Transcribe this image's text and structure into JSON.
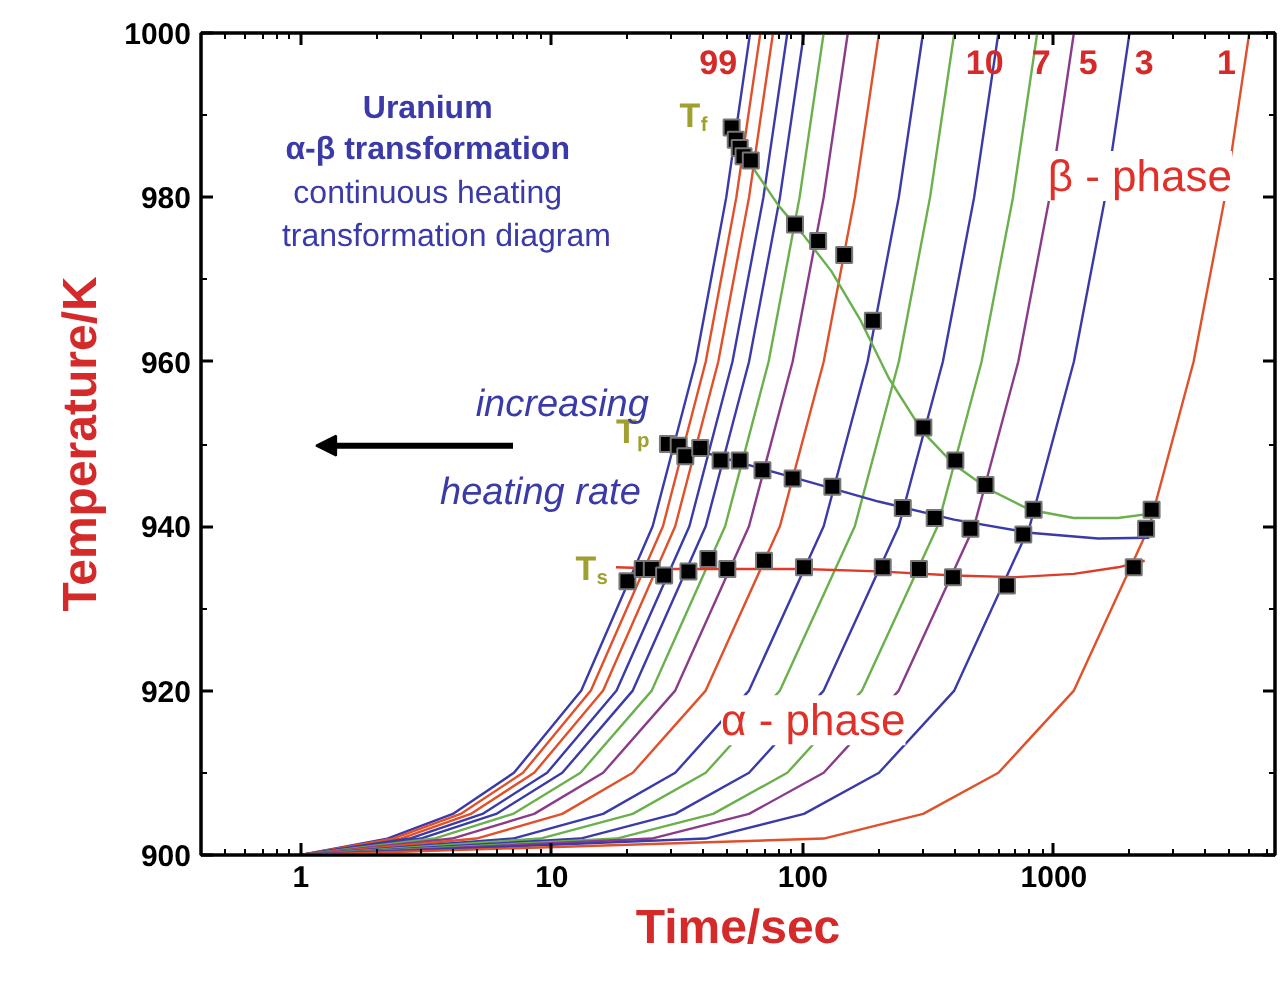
{
  "chart_data": {
    "type": "line",
    "xlabel": "Time/sec",
    "ylabel": "Temperature/K",
    "log": "x",
    "grid": false,
    "xlim": [
      0.4,
      7600
    ],
    "ylim": [
      900,
      1000
    ],
    "xticks": [
      {
        "value": 0.5,
        "label": null
      },
      {
        "value": 0.6,
        "label": null
      },
      {
        "value": 0.7,
        "label": null
      },
      {
        "value": 0.8,
        "label": null
      },
      {
        "value": 0.9,
        "label": null
      },
      1,
      {
        "value": 2,
        "label": null
      },
      {
        "value": 3,
        "label": null
      },
      {
        "value": 4,
        "label": null
      },
      {
        "value": 5,
        "label": null
      },
      {
        "value": 6,
        "label": null
      },
      {
        "value": 7,
        "label": null
      },
      {
        "value": 8,
        "label": null
      },
      {
        "value": 9,
        "label": null
      },
      10,
      {
        "value": 20,
        "label": null
      },
      {
        "value": 30,
        "label": null
      },
      {
        "value": 40,
        "label": null
      },
      {
        "value": 50,
        "label": null
      },
      {
        "value": 60,
        "label": null
      },
      {
        "value": 70,
        "label": null
      },
      {
        "value": 80,
        "label": null
      },
      {
        "value": 90,
        "label": null
      },
      100,
      {
        "value": 200,
        "label": null
      },
      {
        "value": 300,
        "label": null
      },
      {
        "value": 400,
        "label": null
      },
      {
        "value": 500,
        "label": null
      },
      {
        "value": 600,
        "label": null
      },
      {
        "value": 700,
        "label": null
      },
      {
        "value": 800,
        "label": null
      },
      {
        "value": 900,
        "label": null
      },
      1000,
      {
        "value": 2000,
        "label": null
      },
      {
        "value": 3000,
        "label": null
      },
      {
        "value": 4000,
        "label": null
      },
      {
        "value": 5000,
        "label": null
      },
      {
        "value": 6000,
        "label": null
      },
      {
        "value": 7000,
        "label": null
      }
    ],
    "yticks": [
      900,
      {
        "value": 910,
        "label": null
      },
      920,
      {
        "value": 930,
        "label": null
      },
      940,
      {
        "value": 950,
        "label": null
      },
      960,
      {
        "value": 970,
        "label": null
      },
      980,
      {
        "value": 990,
        "label": null
      },
      1000
    ],
    "annotations": [
      "Uranium",
      "α-β transformation",
      "continuous heating",
      "transformation diagram",
      "increasing",
      "heating rate",
      "β - phase",
      "α - phase",
      "99",
      "10",
      "7",
      "5",
      "3",
      "1"
    ],
    "series": [
      {
        "color": "#3a3aa8",
        "x": [
          1,
          2.21,
          4.03,
          7.06,
          13.1,
          25.2,
          37.4,
          49.5,
          61.6
        ],
        "values": [
          900,
          902,
          905,
          910,
          920,
          940,
          960,
          980,
          1000
        ]
      },
      {
        "type": "line",
        "color": "#e0502a",
        "x": [
          1,
          2.33,
          4.33,
          7.67,
          14.3,
          27.7,
          41,
          54.3,
          67.7
        ],
        "values": [
          900,
          902,
          905,
          910,
          920,
          940,
          960,
          980,
          1000
        ]
      },
      {
        "type": "line",
        "color": "#e0502a",
        "x": [
          1,
          2.5,
          4.75,
          8.5,
          16,
          31,
          46,
          61,
          76
        ],
        "values": [
          900,
          902,
          905,
          910,
          920,
          940,
          960,
          980,
          1000
        ]
      },
      {
        "type": "line",
        "color": "#3a3aa8",
        "x": [
          1,
          2.71,
          5.29,
          9.57,
          18.1,
          35.3,
          52.4,
          69.6,
          86.7
        ],
        "values": [
          900,
          902,
          905,
          910,
          920,
          940,
          960,
          980,
          1000
        ]
      },
      {
        "type": "line",
        "color": "#3a3aa8",
        "x": [
          1,
          3,
          6,
          11,
          21,
          41,
          61,
          81,
          101
        ],
        "values": [
          900,
          902,
          905,
          910,
          920,
          940,
          960,
          980,
          1000
        ]
      },
      {
        "type": "line",
        "color": "#6ab04c",
        "x": [
          1,
          3.4,
          7,
          13,
          25,
          49,
          73,
          97,
          121
        ],
        "values": [
          900,
          902,
          905,
          910,
          920,
          940,
          960,
          980,
          1000
        ]
      },
      {
        "type": "line",
        "color": "#8a3c8a",
        "x": [
          1,
          4,
          8.5,
          16,
          31,
          61,
          91,
          121,
          151
        ],
        "values": [
          900,
          902,
          905,
          910,
          920,
          940,
          960,
          980,
          1000
        ]
      },
      {
        "type": "line",
        "color": "#e0502a",
        "x": [
          1,
          5,
          11,
          21,
          41,
          81,
          121,
          161,
          201
        ],
        "values": [
          900,
          902,
          905,
          910,
          920,
          940,
          960,
          980,
          1000
        ]
      },
      {
        "type": "line",
        "color": "#3a3aa8",
        "x": [
          1,
          7,
          16,
          31,
          61,
          121,
          181,
          241,
          301
        ],
        "values": [
          900,
          902,
          905,
          910,
          920,
          940,
          960,
          980,
          1000
        ]
      },
      {
        "type": "line",
        "color": "#6ab04c",
        "x": [
          1,
          9,
          21,
          41,
          81,
          161,
          241,
          321,
          401
        ],
        "values": [
          900,
          902,
          905,
          910,
          920,
          940,
          960,
          980,
          1000
        ]
      },
      {
        "color": "#3a3aa8",
        "x": [
          1,
          13,
          31,
          61,
          121,
          241,
          361,
          481,
          601
        ],
        "values": [
          900,
          902,
          905,
          910,
          920,
          940,
          960,
          980,
          1000
        ]
      },
      {
        "color": "#6ab04c",
        "x": [
          1,
          18.1,
          43.9,
          86.7,
          172,
          344,
          515,
          687,
          858
        ],
        "values": [
          900,
          902,
          905,
          910,
          920,
          940,
          960,
          980,
          1000
        ]
      },
      {
        "color": "#8a3c8a",
        "x": [
          1,
          25,
          61,
          121,
          241,
          481,
          721,
          961,
          1201
        ],
        "values": [
          900,
          902,
          905,
          910,
          920,
          940,
          960,
          980,
          1000
        ]
      },
      {
        "color": "#3a3aa8",
        "x": [
          1,
          41,
          101,
          201,
          401,
          801,
          1201,
          1601,
          2001
        ],
        "values": [
          900,
          902,
          905,
          910,
          920,
          940,
          960,
          980,
          1000
        ]
      },
      {
        "color": "#e0502a",
        "x": [
          1,
          121,
          301,
          601,
          1201,
          2401,
          3601,
          4801,
          6001
        ],
        "values": [
          900,
          902,
          905,
          910,
          920,
          940,
          960,
          980,
          1000
        ]
      },
      {
        "type": "line",
        "color": "#6ab04c",
        "x": [
          50,
          55,
          62,
          80,
          100,
          130,
          170,
          220,
          300,
          400,
          550,
          800,
          1200,
          1800,
          2400
        ],
        "values": [
          989,
          986.5,
          984,
          979,
          975.5,
          971,
          965,
          958,
          951.5,
          947.5,
          944.5,
          942,
          941,
          941,
          941.5
        ]
      },
      {
        "type": "line",
        "color": "#3a3aa8",
        "x": [
          27,
          40,
          60,
          100,
          200,
          400,
          800,
          1500,
          2400
        ],
        "values": [
          950.5,
          949,
          947.5,
          945.6,
          943,
          940.8,
          939.2,
          938.5,
          938.6
        ]
      },
      {
        "type": "line",
        "color": "#e03a2a",
        "x": [
          18,
          30,
          60,
          100,
          200,
          400,
          700,
          1200,
          1800,
          2300
        ],
        "values": [
          935,
          934.8,
          934.8,
          934.8,
          934.5,
          934,
          933.8,
          934.2,
          935,
          935.8
        ]
      },
      {
        "type": "scatter",
        "name": "T$_{f}$",
        "marker": "square",
        "color": "#000000",
        "x": [
          52,
          54,
          56,
          58,
          62,
          93,
          115,
          146,
          190,
          302,
          405,
          534,
          830,
          2450
        ],
        "values": [
          988.5,
          987,
          986,
          985,
          984.5,
          976.7,
          974.7,
          973,
          965,
          952,
          948,
          945,
          942,
          942
        ]
      },
      {
        "type": "scatter",
        "name": "T$_{p}$",
        "marker": "square",
        "color": "#000000",
        "x": [
          29,
          32,
          34,
          39,
          47,
          56,
          69,
          91,
          131,
          250,
          335,
          465,
          755,
          2330
        ],
        "values": [
          950,
          949.8,
          948.5,
          949.5,
          948,
          948,
          946.8,
          945.8,
          944.8,
          942.2,
          941,
          939.7,
          939,
          939.7
        ]
      },
      {
        "type": "scatter",
        "name": "T$_{s}$",
        "marker": "square",
        "color": "#000000",
        "x": [
          20,
          23,
          25,
          28,
          35,
          42,
          50,
          70,
          101,
          208,
          290,
          396,
          650,
          2080
        ],
        "values": [
          933.3,
          934.8,
          934.8,
          934,
          934.5,
          936,
          934.8,
          935.8,
          935,
          935,
          934.8,
          933.8,
          932.8,
          935
        ]
      }
    ]
  }
}
